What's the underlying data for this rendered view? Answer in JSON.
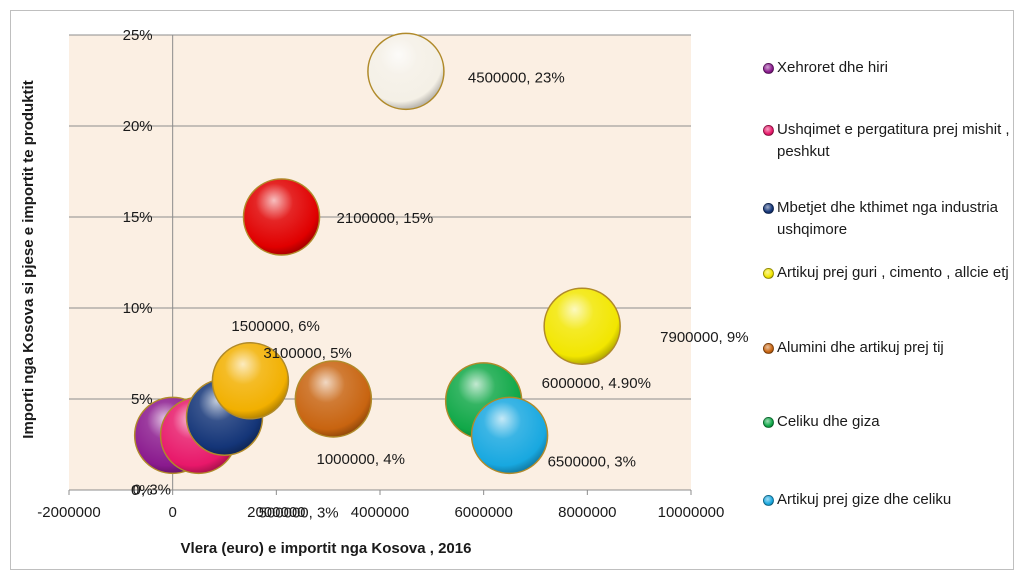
{
  "chart_data": {
    "type": "bubble",
    "title": "",
    "xlabel": "Vlera (euro)  e importit nga Kosova , 2016",
    "ylabel": "Importi nga Kosova si pjese e importit te produktit",
    "xlim": [
      -2000000,
      10000000
    ],
    "ylim": [
      0,
      25
    ],
    "x_ticks": [
      "-2000000",
      "0",
      "2000000",
      "4000000",
      "6000000",
      "8000000",
      "10000000"
    ],
    "y_ticks": [
      "0%",
      "5%",
      "10%",
      "15%",
      "20%",
      "25%"
    ],
    "grid": "horizontal",
    "legend_position": "right",
    "plot_background": "#fbefe3",
    "series": [
      {
        "name": "Xehroret dhe hiri",
        "x": 0,
        "y": 3,
        "label": "0, 3%",
        "color": "#8a1a8e"
      },
      {
        "name": "Ushqimet e pergatitura prej mishit , peshkut",
        "x": 500000,
        "y": 3,
        "label": "500000, 3%",
        "color": "#e8186a"
      },
      {
        "name": "Mbetjet dhe kthimet nga industria ushqimore",
        "x": 1000000,
        "y": 4,
        "label": "1000000, 4%",
        "color": "#143578"
      },
      {
        "name": "Artikuj prej guri , cimento , allcie etj",
        "x": 7900000,
        "y": 9,
        "label": "7900000, 9%",
        "color": "#f2e600"
      },
      {
        "name": "Alumini dhe artikuj prej tij",
        "x": 3100000,
        "y": 5,
        "label": "3100000, 5%",
        "color": "#c86410"
      },
      {
        "name": "Celiku dhe giza",
        "x": 6000000,
        "y": 4.9,
        "label": "6000000, 4.90%",
        "color": "#10a848"
      },
      {
        "name": "Artikuj prej gize dhe celiku",
        "x": 6500000,
        "y": 3,
        "label": "6500000, 3%",
        "color": "#18a8e0"
      }
    ],
    "unlabeled_series": [
      {
        "x": 1500000,
        "y": 6,
        "label": "1500000, 6%",
        "color": "#f2b000"
      },
      {
        "x": 2100000,
        "y": 15,
        "label": "2100000, 15%",
        "color": "#e00000"
      },
      {
        "x": 4500000,
        "y": 23,
        "label": "4500000, 23%",
        "color": "#f4f0e6"
      }
    ]
  }
}
